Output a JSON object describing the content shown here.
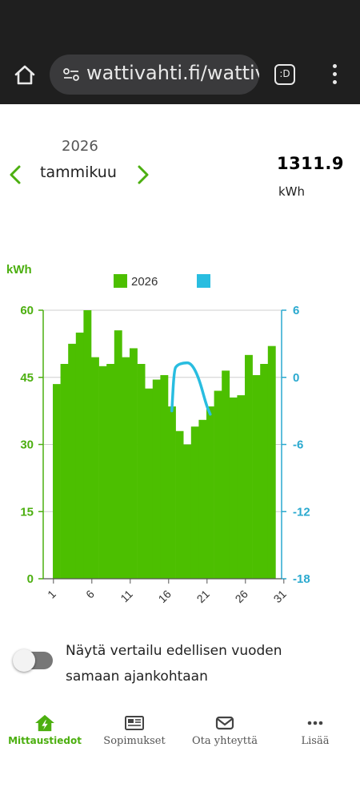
{
  "browser": {
    "url": "wattivahti.fi/wattiv",
    "tabs_label": ":D"
  },
  "period": {
    "year": "2026",
    "month": "tammikuu"
  },
  "summary": {
    "total": "1311.9",
    "unit": "kWh"
  },
  "chart_data": {
    "type": "bar",
    "ylabel": "kWh",
    "legend": [
      {
        "name": "2026",
        "color": "#4cbf00"
      },
      {
        "name": "",
        "color": "#29bde0"
      }
    ],
    "y_left": {
      "min": 0,
      "max": 60,
      "ticks": [
        "0",
        "15",
        "30",
        "45",
        "60"
      ]
    },
    "y_right": {
      "min": -18,
      "max": 6,
      "ticks": [
        "-18",
        "-12",
        "-6",
        "0",
        "6"
      ]
    },
    "x_ticks": [
      "1",
      "6",
      "11",
      "16",
      "21",
      "26",
      "31"
    ],
    "series": [
      {
        "name": "2026",
        "values": [
          43.5,
          48.0,
          52.5,
          55.0,
          60.0,
          49.5,
          47.5,
          48.0,
          55.5,
          49.5,
          51.5,
          48.0,
          42.5,
          44.5,
          45.5,
          38.5,
          33.0,
          30.0,
          34.0,
          35.5,
          38.5,
          42.0,
          46.5,
          40.5,
          41.0,
          50.0,
          45.5,
          48.0,
          52.0
        ]
      },
      {
        "name": "",
        "axis": "right",
        "days": [
          16,
          16.3,
          16.7,
          17.5,
          18.5,
          19.5,
          20.5,
          21.0
        ],
        "values": [
          -3.0,
          0.7,
          1.1,
          1.3,
          1.3,
          0.0,
          -2.5,
          -3.3
        ]
      }
    ],
    "grid": "horizontal"
  },
  "colors": {
    "accent": "#4caf10",
    "bars": "#4cbf00",
    "line": "#29bde0"
  },
  "comparison": {
    "label": "Näytä vertailu edellisen vuoden samaan ajankohtaan",
    "enabled": false
  },
  "nav": {
    "items": [
      {
        "label": "Mittaustiedot",
        "icon": "home-bolt-icon",
        "active": true
      },
      {
        "label": "Sopimukset",
        "icon": "newspaper-icon",
        "active": false
      },
      {
        "label": "Ota yhteyttä",
        "icon": "envelope-icon",
        "active": false
      },
      {
        "label": "Lisää",
        "icon": "more-dots-icon",
        "active": false
      }
    ]
  }
}
